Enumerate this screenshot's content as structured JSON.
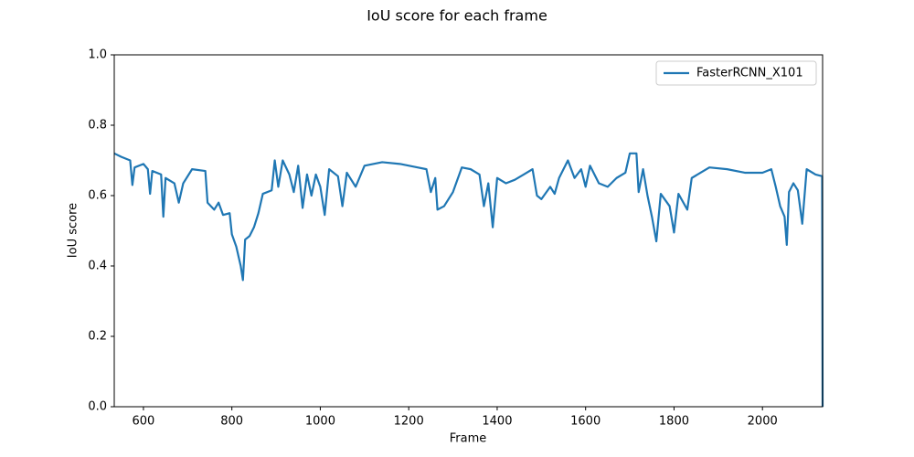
{
  "chart_data": {
    "type": "line",
    "title": "IoU score for each frame",
    "xlabel": "Frame",
    "ylabel": "IoU score",
    "xlim": [
      534,
      2136
    ],
    "ylim": [
      0,
      1
    ],
    "xticks": [
      600,
      800,
      1000,
      1200,
      1400,
      1600,
      1800,
      2000
    ],
    "yticks": [
      {
        "value": 0,
        "label": "0.0"
      },
      0.2,
      0.4,
      0.6,
      0.8,
      {
        "value": 1,
        "label": "1.0"
      }
    ],
    "legend": "upper right",
    "series": [
      {
        "name": "FasterRCNN_X101",
        "color": "#1f77b4",
        "x": [
          534,
          550,
          570,
          575,
          580,
          600,
          610,
          615,
          620,
          640,
          645,
          650,
          670,
          680,
          690,
          710,
          740,
          745,
          760,
          770,
          780,
          795,
          800,
          810,
          820,
          825,
          830,
          840,
          850,
          860,
          870,
          890,
          897,
          905,
          915,
          930,
          940,
          950,
          960,
          970,
          980,
          990,
          1000,
          1010,
          1020,
          1040,
          1050,
          1060,
          1080,
          1100,
          1140,
          1180,
          1220,
          1240,
          1250,
          1260,
          1265,
          1280,
          1300,
          1320,
          1340,
          1360,
          1370,
          1380,
          1390,
          1400,
          1420,
          1440,
          1460,
          1480,
          1490,
          1500,
          1520,
          1530,
          1540,
          1560,
          1575,
          1590,
          1600,
          1610,
          1630,
          1650,
          1670,
          1690,
          1700,
          1715,
          1720,
          1730,
          1740,
          1750,
          1760,
          1770,
          1790,
          1800,
          1810,
          1830,
          1840,
          1860,
          1880,
          1920,
          1960,
          2000,
          2020,
          2030,
          2040,
          2050,
          2055,
          2060,
          2070,
          2080,
          2090,
          2100,
          2120,
          2135,
          2136
        ],
        "values": [
          0.72,
          0.71,
          0.7,
          0.63,
          0.68,
          0.69,
          0.675,
          0.605,
          0.67,
          0.66,
          0.54,
          0.65,
          0.635,
          0.58,
          0.635,
          0.675,
          0.67,
          0.58,
          0.56,
          0.58,
          0.545,
          0.55,
          0.49,
          0.455,
          0.4,
          0.36,
          0.475,
          0.485,
          0.51,
          0.55,
          0.605,
          0.615,
          0.7,
          0.625,
          0.7,
          0.66,
          0.61,
          0.685,
          0.565,
          0.66,
          0.6,
          0.66,
          0.625,
          0.545,
          0.675,
          0.655,
          0.57,
          0.665,
          0.625,
          0.685,
          0.695,
          0.69,
          0.68,
          0.675,
          0.61,
          0.65,
          0.56,
          0.57,
          0.61,
          0.68,
          0.675,
          0.66,
          0.57,
          0.635,
          0.51,
          0.65,
          0.635,
          0.645,
          0.66,
          0.675,
          0.6,
          0.59,
          0.625,
          0.605,
          0.65,
          0.7,
          0.65,
          0.675,
          0.625,
          0.685,
          0.635,
          0.625,
          0.65,
          0.665,
          0.72,
          0.72,
          0.61,
          0.675,
          0.6,
          0.54,
          0.47,
          0.605,
          0.57,
          0.495,
          0.605,
          0.56,
          0.65,
          0.665,
          0.68,
          0.675,
          0.665,
          0.665,
          0.675,
          0.625,
          0.57,
          0.54,
          0.46,
          0.61,
          0.635,
          0.615,
          0.52,
          0.675,
          0.66,
          0.655,
          0
        ]
      }
    ]
  }
}
